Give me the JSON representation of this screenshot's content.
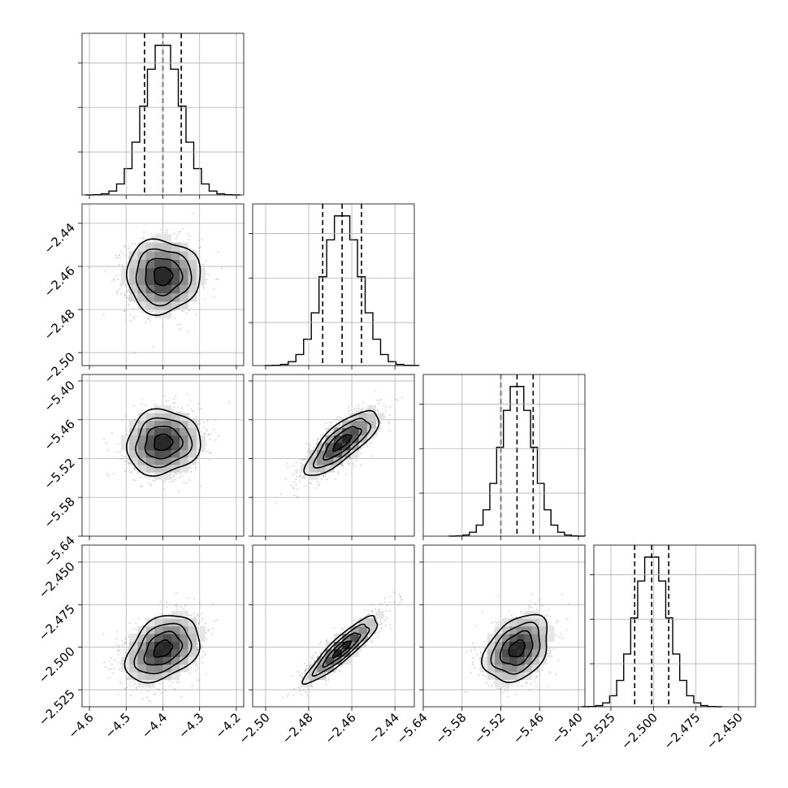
{
  "chart_data": {
    "type": "corner",
    "parameters": [
      {
        "id": "p0",
        "range": [
          -4.62,
          -4.18
        ],
        "ticks": [
          -4.6,
          -4.5,
          -4.4,
          -4.3,
          -4.2
        ],
        "tick_labels": [
          "−4.6",
          "−4.5",
          "−4.4",
          "−4.3",
          "−4.2"
        ],
        "center": -4.4,
        "sigma": 0.05,
        "quantiles": [
          -4.45,
          -4.4,
          -4.35
        ]
      },
      {
        "id": "p1",
        "range": [
          -2.506,
          -2.431
        ],
        "ticks": [
          -2.5,
          -2.48,
          -2.46,
          -2.44
        ],
        "tick_labels": [
          "−2.50",
          "−2.48",
          "−2.46",
          "−2.44"
        ],
        "center": -2.4645,
        "sigma": 0.0085,
        "quantiles": [
          -2.4735,
          -2.4645,
          -2.4555
        ]
      },
      {
        "id": "p2",
        "range": [
          -5.64,
          -5.39
        ],
        "ticks": [
          -5.64,
          -5.58,
          -5.52,
          -5.46,
          -5.4
        ],
        "tick_labels": [
          "−5.64",
          "−5.58",
          "−5.52",
          "−5.46",
          "−5.40"
        ],
        "center": -5.495,
        "sigma": 0.025,
        "quantiles": [
          -5.52,
          -5.495,
          -5.47
        ]
      },
      {
        "id": "p3",
        "range": [
          -2.535,
          -2.44
        ],
        "ticks": [
          -2.525,
          -2.5,
          -2.475,
          -2.45
        ],
        "tick_labels": [
          "−2.525",
          "−2.500",
          "−2.475",
          "−2.450"
        ],
        "center": -2.501,
        "sigma": 0.0098,
        "quantiles": [
          -2.511,
          -2.501,
          -2.491
        ]
      }
    ],
    "correlations": {
      "1,0": 0.0,
      "2,0": 0.08,
      "2,1": 0.78,
      "3,0": 0.35,
      "3,1": 0.9,
      "3,2": 0.35
    },
    "contour_levels_sigma": [
      0.5,
      1.0,
      1.5,
      2.0
    ],
    "grid": true,
    "colors": {
      "contour": "#000000",
      "density_dark": "#1a1a1a",
      "scatter": "#8c8c8c"
    }
  }
}
